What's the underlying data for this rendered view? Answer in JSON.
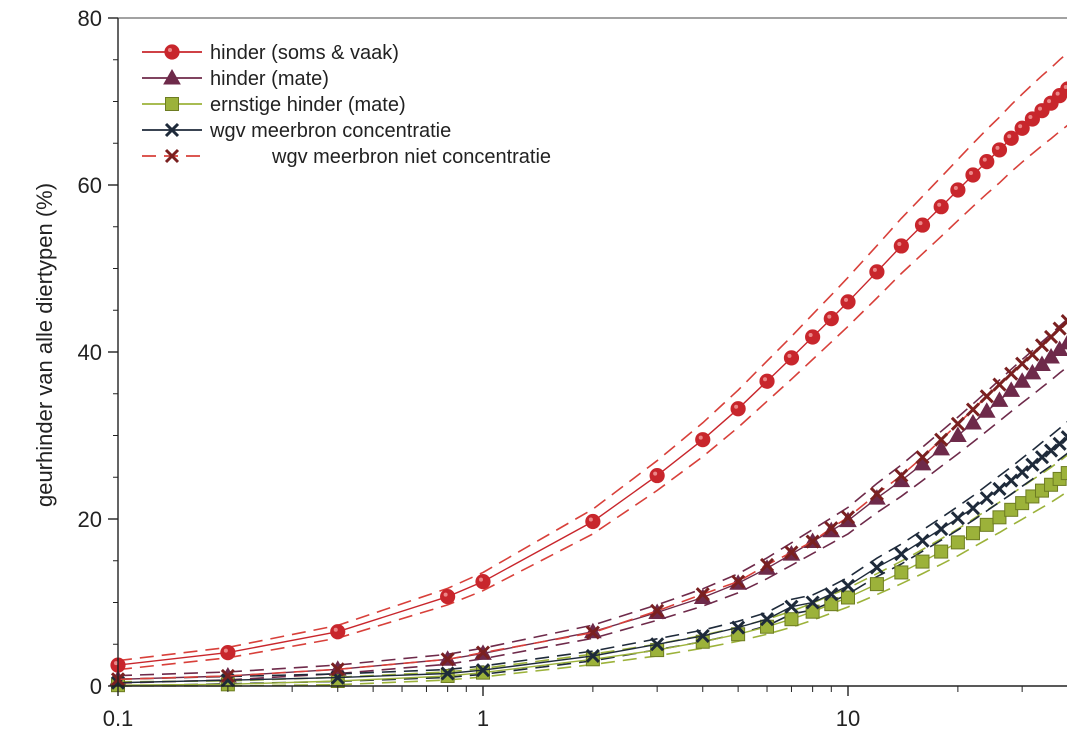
{
  "chart_data": {
    "type": "line",
    "xscale": "log",
    "xlim": [
      0.1,
      40
    ],
    "ylim": [
      0,
      80
    ],
    "xticks": [
      "0.1",
      "1",
      "10"
    ],
    "yticks": [
      "0",
      "20",
      "40",
      "60",
      "80"
    ],
    "title": "",
    "xlabel": "",
    "ylabel": "geurhinder van alle diertypen (%)",
    "legend": {
      "position": "top-left",
      "entries": [
        "hinder (soms & vaak)",
        "hinder (mate)",
        "ernstige hinder (mate)",
        "wgv meerbron concentratie",
        "wgv meerbron niet concentratie"
      ]
    },
    "colors": {
      "hinder_soms_vaak": "#c8262c",
      "hinder_mate": "#6e2a4a",
      "ernstige_hinder": "#9cb23a",
      "wgv_concentratie": "#1e2a3a",
      "wgv_niet_concentratie": "#7a2020",
      "dashed_lines": "#d8403a"
    },
    "series": [
      {
        "name": "hinder (soms & vaak)",
        "marker": "circle",
        "x": [
          0.1,
          0.2,
          0.4,
          0.8,
          1,
          2,
          3,
          4,
          5,
          6,
          7,
          8,
          9,
          10,
          12,
          14,
          16,
          18,
          20,
          22,
          24,
          26,
          28,
          30,
          32,
          34,
          36,
          38,
          40
        ],
        "y": [
          2.5,
          4,
          6.5,
          10.7,
          12.5,
          19.7,
          25.2,
          29.5,
          33.2,
          36.5,
          39.3,
          41.8,
          44,
          46,
          49.6,
          52.7,
          55.2,
          57.4,
          59.4,
          61.2,
          62.8,
          64.2,
          65.6,
          66.8,
          67.9,
          68.9,
          69.8,
          70.7,
          71.5
        ]
      },
      {
        "name": "hinder (mate)",
        "marker": "triangle",
        "x": [
          0.1,
          0.2,
          0.4,
          0.8,
          1,
          2,
          3,
          4,
          5,
          6,
          7,
          8,
          9,
          10,
          12,
          14,
          16,
          18,
          20,
          22,
          24,
          26,
          28,
          30,
          32,
          34,
          36,
          38,
          40
        ],
        "y": [
          0.8,
          1.2,
          2,
          3.2,
          3.9,
          6.5,
          8.8,
          10.6,
          12.3,
          14.1,
          15.8,
          17.3,
          18.6,
          19.8,
          22.5,
          24.6,
          26.6,
          28.4,
          30,
          31.5,
          32.9,
          34.2,
          35.4,
          36.5,
          37.5,
          38.5,
          39.4,
          40.3,
          41.1
        ]
      },
      {
        "name": "ernstige hinder (mate)",
        "marker": "square",
        "x": [
          0.1,
          0.2,
          0.4,
          0.8,
          1,
          2,
          3,
          4,
          5,
          6,
          7,
          8,
          9,
          10,
          12,
          14,
          16,
          18,
          20,
          22,
          24,
          26,
          28,
          30,
          32,
          34,
          36,
          38,
          40
        ],
        "y": [
          0.1,
          0.2,
          0.6,
          1.2,
          1.6,
          3.2,
          4.3,
          5.3,
          6.2,
          7.1,
          8,
          8.9,
          9.8,
          10.6,
          12.2,
          13.6,
          14.9,
          16.1,
          17.2,
          18.3,
          19.3,
          20.2,
          21.1,
          21.9,
          22.7,
          23.4,
          24.1,
          24.8,
          25.5
        ]
      },
      {
        "name": "wgv meerbron concentratie",
        "marker": "x",
        "x": [
          0.1,
          0.2,
          0.4,
          0.8,
          1,
          2,
          3,
          4,
          5,
          6,
          7,
          8,
          9,
          10,
          12,
          14,
          16,
          18,
          20,
          22,
          24,
          26,
          28,
          30,
          32,
          34,
          36,
          38,
          40
        ],
        "y": [
          0.4,
          0.7,
          1,
          1.5,
          1.9,
          3.6,
          5,
          6,
          7,
          8,
          9.5,
          10,
          11,
          12,
          14.2,
          15.8,
          17.4,
          18.8,
          20.1,
          21.3,
          22.5,
          23.6,
          24.6,
          25.6,
          26.5,
          27.4,
          28.2,
          29,
          29.8
        ]
      },
      {
        "name": "wgv meerbron niet concentratie",
        "marker": "x",
        "dashed": true,
        "x": [
          0.1,
          0.2,
          0.4,
          0.8,
          1,
          2,
          3,
          4,
          5,
          6,
          7,
          8,
          9,
          10,
          12,
          14,
          16,
          18,
          20,
          22,
          24,
          26,
          28,
          30,
          32,
          34,
          36,
          38,
          40
        ],
        "y": [
          0.8,
          1.2,
          2,
          3.2,
          4,
          6.4,
          9,
          11,
          12.5,
          14.5,
          16,
          17.3,
          18.9,
          20.2,
          23,
          25.2,
          27.4,
          29.5,
          31.4,
          33.1,
          34.7,
          36.1,
          37.4,
          38.6,
          39.7,
          40.8,
          41.8,
          42.8,
          43.7
        ]
      }
    ]
  }
}
